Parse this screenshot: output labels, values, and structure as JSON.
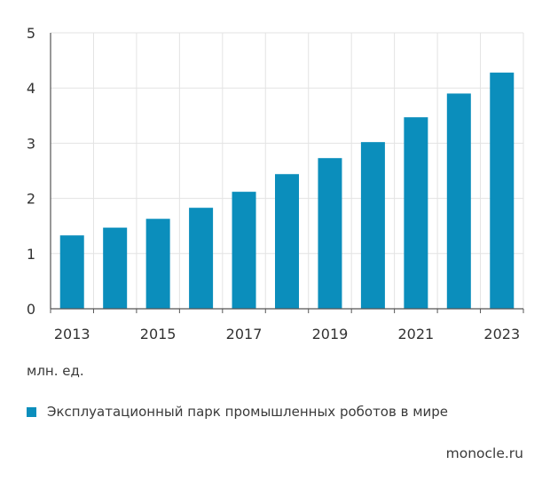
{
  "chart_data": {
    "type": "bar",
    "categories": [
      "2013",
      "2014",
      "2015",
      "2016",
      "2017",
      "2018",
      "2019",
      "2020",
      "2021",
      "2022",
      "2023"
    ],
    "values": [
      1.33,
      1.47,
      1.63,
      1.83,
      2.12,
      2.44,
      2.73,
      3.02,
      3.47,
      3.9,
      4.28
    ],
    "x_tick_labels": [
      "2013",
      "2015",
      "2017",
      "2019",
      "2021",
      "2023"
    ],
    "y_ticks": [
      0,
      1,
      2,
      3,
      4,
      5
    ],
    "ylim": [
      0,
      5
    ],
    "grid": true,
    "bar_color": "#0b8ebc",
    "legend_placement": "bottom-left"
  },
  "unit_label": "млн. ед.",
  "legend_label": "Эксплуатационный парк промышленных роботов в мире",
  "source": "monocle.ru"
}
